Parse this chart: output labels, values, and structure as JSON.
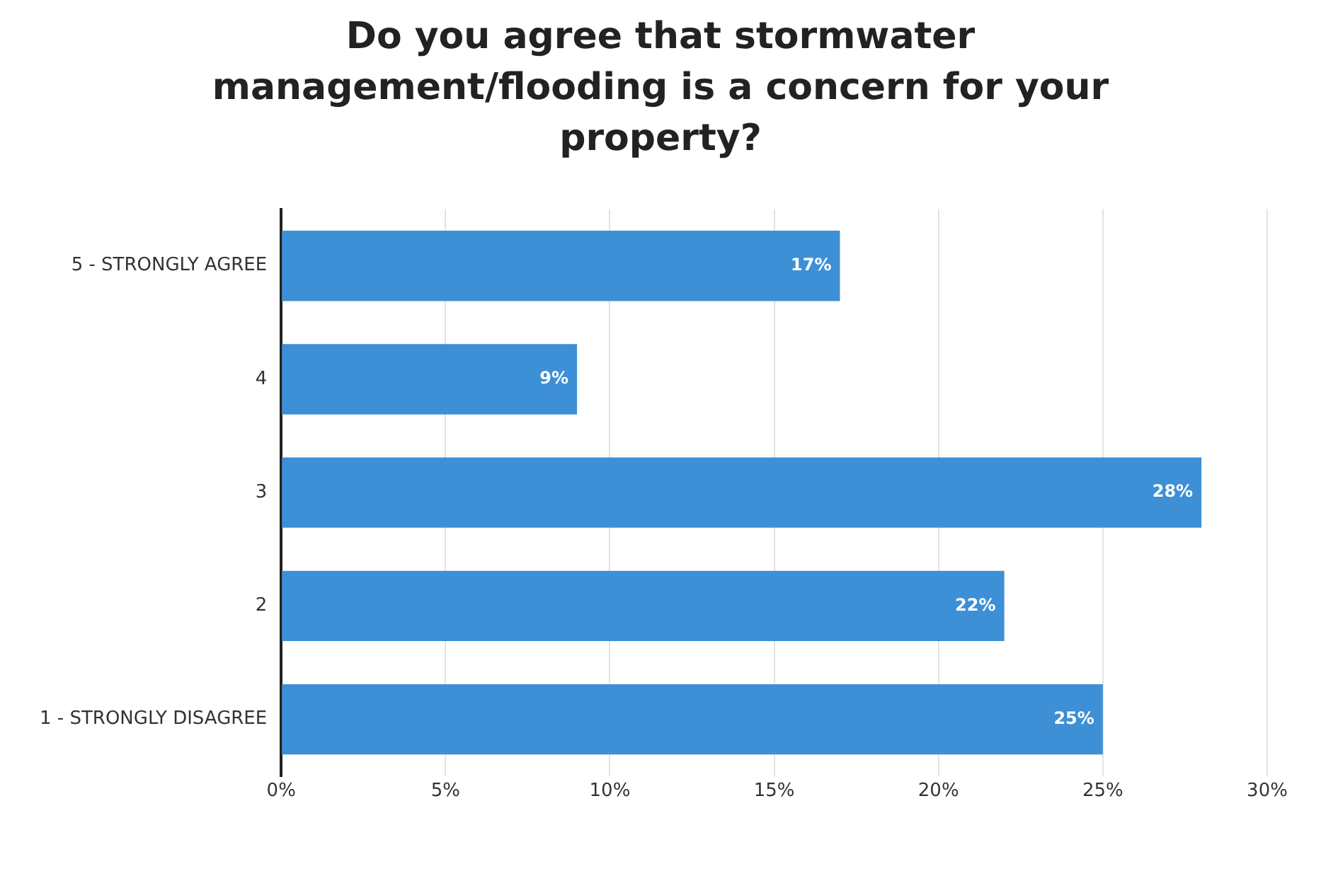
{
  "chart_data": {
    "type": "bar",
    "orientation": "horizontal",
    "title": "Do you agree that stormwater management/flooding is a concern for your property?",
    "categories": [
      "5 - STRONGLY AGREE",
      "4",
      "3",
      "2",
      "1 - STRONGLY DISAGREE"
    ],
    "values": [
      17,
      9,
      28,
      22,
      25
    ],
    "value_labels": [
      "17%",
      "9%",
      "28%",
      "22%",
      "25%"
    ],
    "color": "#3d8fd6",
    "xlim": [
      0,
      30
    ],
    "xticks": [
      {
        "value": 0,
        "label": "0%"
      },
      {
        "value": 5,
        "label": "5%"
      },
      {
        "value": 10,
        "label": "10%"
      },
      {
        "value": 15,
        "label": "15%"
      },
      {
        "value": 20,
        "label": "20%"
      },
      {
        "value": 25,
        "label": "25%"
      },
      {
        "value": 30,
        "label": "30%"
      }
    ],
    "grid": "x",
    "legend": false
  }
}
